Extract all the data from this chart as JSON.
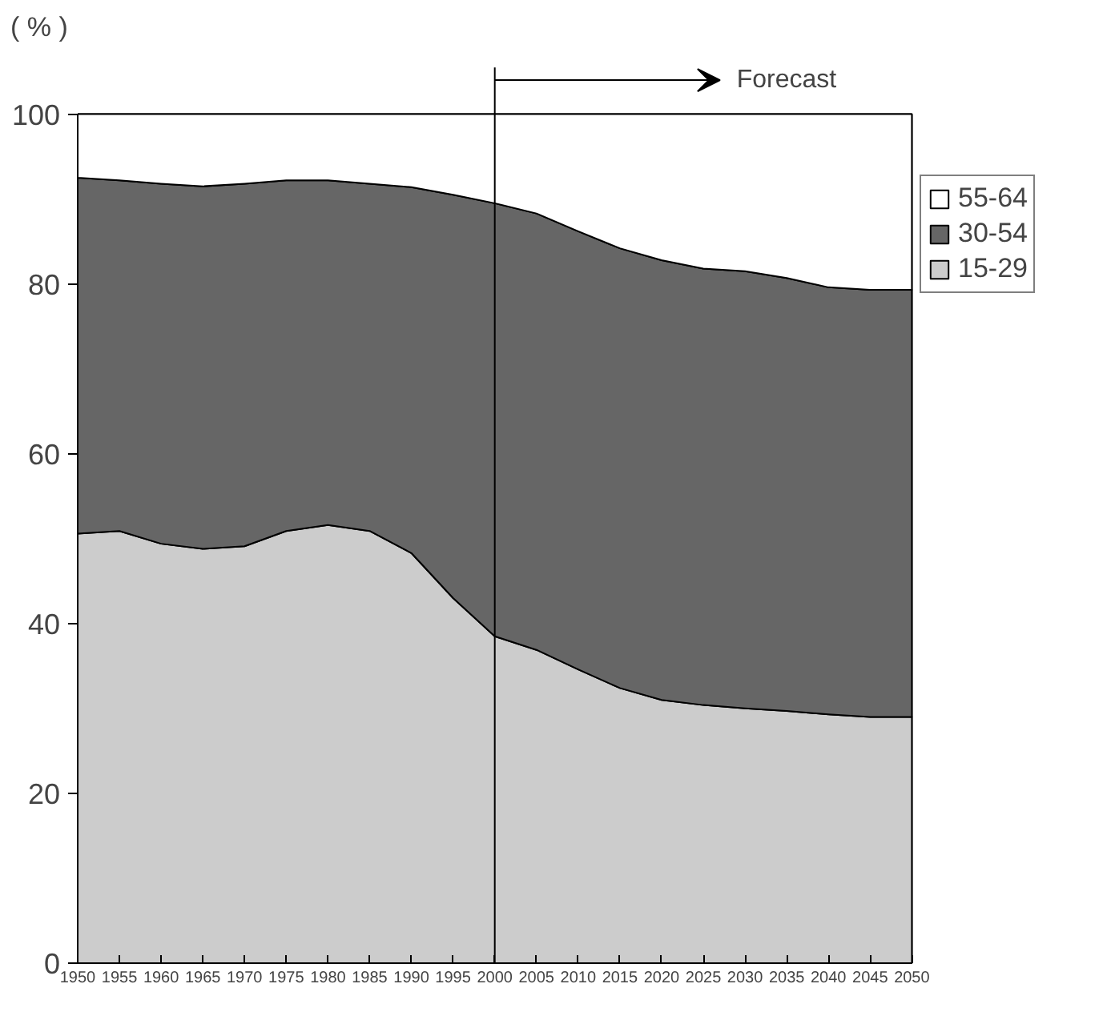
{
  "chart_data": {
    "type": "area",
    "stacked": true,
    "ylabel": "( % )",
    "x": [
      1950,
      1955,
      1960,
      1965,
      1970,
      1975,
      1980,
      1985,
      1990,
      1995,
      2000,
      2005,
      2010,
      2015,
      2020,
      2025,
      2030,
      2035,
      2040,
      2045,
      2050
    ],
    "series": [
      {
        "name": "15-29",
        "color": "#cccccc",
        "values": [
          50.6,
          50.9,
          49.4,
          48.8,
          49.1,
          50.9,
          51.6,
          50.9,
          48.3,
          43.0,
          38.5,
          36.9,
          34.6,
          32.4,
          31.0,
          30.4,
          30.0,
          29.7,
          29.3,
          29.0,
          29.0
        ]
      },
      {
        "name": "30-54",
        "color": "#666666",
        "values": [
          41.9,
          41.3,
          42.4,
          42.7,
          42.7,
          41.3,
          40.6,
          40.9,
          43.1,
          47.5,
          51.0,
          51.4,
          51.6,
          51.8,
          51.8,
          51.4,
          51.5,
          51.0,
          50.3,
          50.3,
          50.3
        ]
      },
      {
        "name": "55-64",
        "color": "#ffffff",
        "values": [
          7.5,
          7.8,
          8.2,
          8.5,
          8.2,
          7.8,
          7.8,
          8.2,
          8.6,
          9.5,
          10.5,
          11.7,
          13.8,
          15.8,
          17.2,
          18.2,
          18.5,
          19.3,
          20.4,
          20.7,
          20.7
        ]
      }
    ],
    "xlim": [
      1950,
      2050
    ],
    "ylim": [
      0,
      100
    ],
    "xticks": [
      1950,
      1955,
      1960,
      1965,
      1970,
      1975,
      1980,
      1985,
      1990,
      1995,
      2000,
      2005,
      2010,
      2015,
      2020,
      2025,
      2030,
      2035,
      2040,
      2045,
      2050
    ],
    "yticks": [
      0,
      20,
      40,
      60,
      80,
      100
    ],
    "ref_lines": [
      {
        "axis": "x",
        "value": 2000,
        "label": "Forecast"
      }
    ],
    "grid": false,
    "legend": "right"
  }
}
